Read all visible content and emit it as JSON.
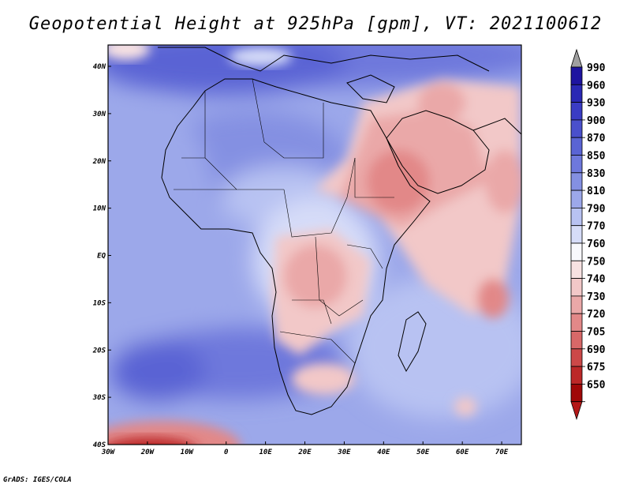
{
  "title": "Geopotential Height at 925hPa [gpm], VT: 2021100612",
  "footer": "GrADS: IGES/COLA",
  "map": {
    "region": "Africa, Arabian Peninsula and western Indian Ocean",
    "variable": "Geopotential Height 925hPa",
    "units": "gpm",
    "lon_ticks": [
      "30W",
      "20W",
      "10W",
      "0",
      "10E",
      "20E",
      "30E",
      "40E",
      "50E",
      "60E",
      "70E"
    ],
    "lat_ticks": [
      "40N",
      "30N",
      "20N",
      "10N",
      "EQ",
      "10S",
      "20S",
      "30S",
      "40S"
    ]
  },
  "colorbar": {
    "levels": [
      "990",
      "960",
      "930",
      "900",
      "870",
      "850",
      "830",
      "810",
      "790",
      "770",
      "760",
      "750",
      "740",
      "730",
      "720",
      "705",
      "690",
      "675",
      "650"
    ],
    "colors": [
      "#a0a0a0",
      "#1e14a0",
      "#2a28b4",
      "#3a3cc4",
      "#4a50cc",
      "#5a64d4",
      "#6e78dc",
      "#8490e2",
      "#9ca8ea",
      "#b8c2f2",
      "#d6dcf8",
      "#f8f8fc",
      "#f8e2e2",
      "#f2c8c8",
      "#eaa8a8",
      "#e28888",
      "#d86868",
      "#cc4848",
      "#bc2828",
      "#a00808",
      "#b41818"
    ]
  }
}
